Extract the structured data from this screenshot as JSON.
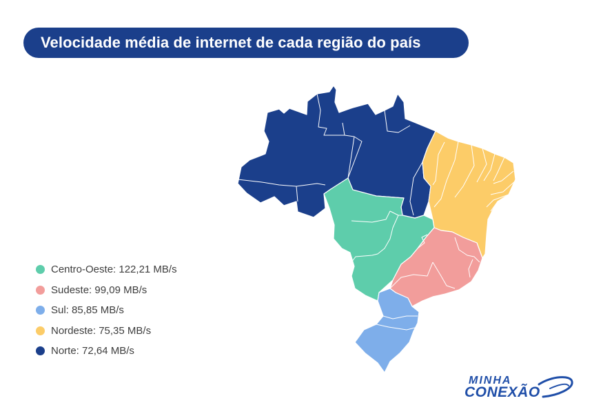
{
  "title": "Velocidade média de internet de cada região do país",
  "regions": [
    {
      "name": "Centro-Oeste",
      "value": "122,21 MB/s",
      "color": "#5ecdab"
    },
    {
      "name": "Sudeste",
      "value": "99,09 MB/s",
      "color": "#f29d9b"
    },
    {
      "name": "Sul",
      "value": "85,85 MB/s",
      "color": "#7eaeea"
    },
    {
      "name": "Nordeste",
      "value": "75,35 MB/s",
      "color": "#fccc68"
    },
    {
      "name": "Norte",
      "value": "72,64 MB/s",
      "color": "#1b3f8b"
    }
  ],
  "legend": [
    "Centro-Oeste: 122,21 MB/s",
    "Sudeste: 99,09 MB/s",
    "Sul: 85,85 MB/s",
    "Nordeste: 75,35 MB/s",
    "Norte: 72,64 MB/s"
  ],
  "logo": {
    "line1": "MINHA",
    "line2": "CONEXÃO"
  }
}
